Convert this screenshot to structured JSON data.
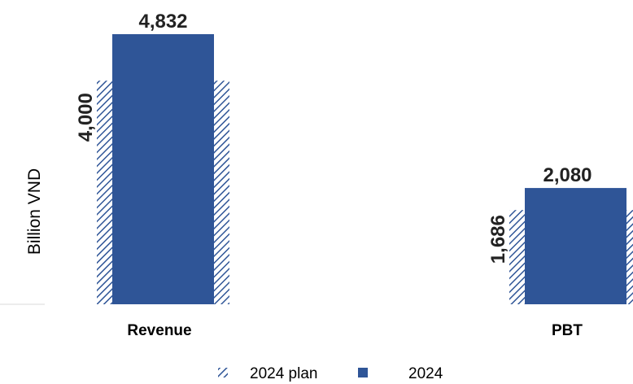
{
  "chart_data": {
    "type": "bar",
    "ylabel": "Billion VND",
    "categories": [
      "Revenue",
      "PBT"
    ],
    "series": [
      {
        "name": "2024 plan",
        "values": [
          4000,
          1686
        ],
        "value_labels": [
          "4,000",
          "1,686"
        ],
        "color": "#2f5597",
        "pattern": "hatched"
      },
      {
        "name": "2024",
        "values": [
          4832,
          2080
        ],
        "value_labels": [
          "4,832",
          "2,080"
        ],
        "color": "#2f5597",
        "pattern": "solid"
      }
    ],
    "legend_position": "bottom-center",
    "grid": false
  }
}
